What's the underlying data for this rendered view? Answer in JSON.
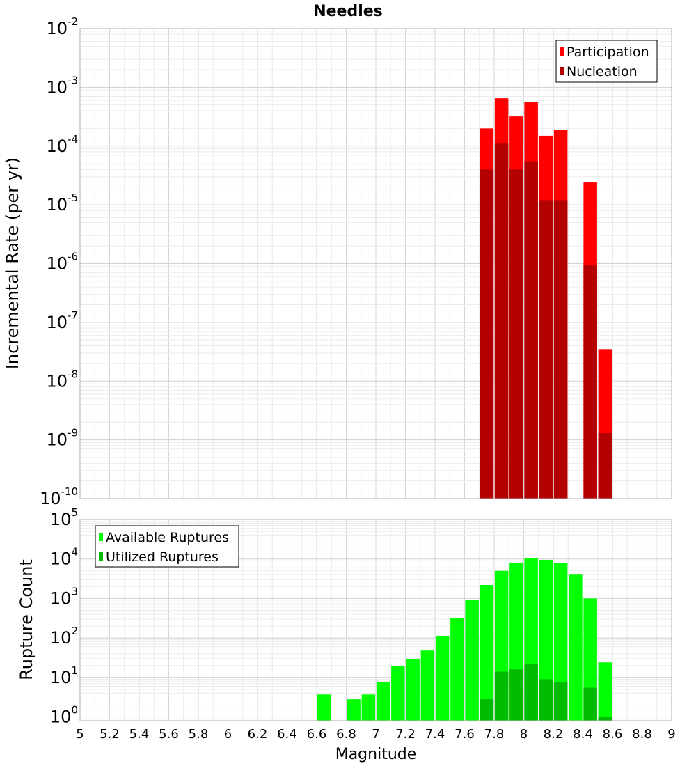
{
  "chart_data": [
    {
      "type": "bar",
      "title": "Needles",
      "ylabel": "Incremental Rate (per yr)",
      "yscale": "log",
      "ylim": [
        1e-10,
        0.01
      ],
      "xlim": [
        5,
        9
      ],
      "legend": "top-right",
      "grid": true,
      "yticks": [
        "10|-2",
        "10|-3",
        "10|-4",
        "10|-5",
        "10|-6",
        "10|-7",
        "10|-8",
        "10|-9",
        "10|-10"
      ],
      "x": [
        7.75,
        7.85,
        7.95,
        8.05,
        8.15,
        8.25,
        8.35,
        8.45,
        8.55
      ],
      "series": [
        {
          "name": "Participation",
          "color": "#ff0000",
          "values": [
            0.0002,
            0.00065,
            0.00032,
            0.00056,
            0.00015,
            0.00019,
            null,
            2.4e-05,
            3.5e-08
          ]
        },
        {
          "name": "Nucleation",
          "color": "#b30000",
          "values": [
            4e-05,
            0.00011,
            4e-05,
            5.5e-05,
            1.2e-05,
            1.2e-05,
            null,
            9.5e-07,
            1.3e-09
          ]
        }
      ]
    },
    {
      "type": "bar",
      "xlabel": "Magnitude",
      "ylabel": "Rupture Count",
      "yscale": "log",
      "ylim": [
        0.8,
        100000
      ],
      "xlim": [
        5,
        9
      ],
      "legend": "top-left",
      "grid": true,
      "yticks": [
        "10|5",
        "10|4",
        "10|3",
        "10|2",
        "10|1",
        "10|0"
      ],
      "xticks": [
        "5",
        "5.2",
        "5.4",
        "5.6",
        "5.8",
        "6",
        "6.2",
        "6.4",
        "6.6",
        "6.8",
        "7",
        "7.2",
        "7.4",
        "7.6",
        "7.8",
        "8",
        "8.2",
        "8.4",
        "8.6",
        "8.8",
        "9"
      ],
      "x": [
        6.65,
        6.75,
        6.85,
        6.95,
        7.05,
        7.15,
        7.25,
        7.35,
        7.45,
        7.55,
        7.65,
        7.75,
        7.85,
        7.95,
        8.05,
        8.15,
        8.25,
        8.35,
        8.45,
        8.55
      ],
      "series": [
        {
          "name": "Available Ruptures",
          "color": "#00ff00",
          "values": [
            3.7,
            null,
            2.8,
            3.7,
            7.5,
            19,
            29,
            48,
            110,
            320,
            900,
            2200,
            5000,
            8000,
            10500,
            9500,
            7800,
            4000,
            1000,
            24
          ]
        },
        {
          "name": "Utilized Ruptures",
          "color": "#00bb00",
          "values": [
            null,
            null,
            null,
            null,
            null,
            null,
            null,
            null,
            null,
            null,
            null,
            2.8,
            14,
            16,
            22,
            9,
            7.5,
            null,
            5.5,
            1.0
          ]
        }
      ]
    }
  ]
}
